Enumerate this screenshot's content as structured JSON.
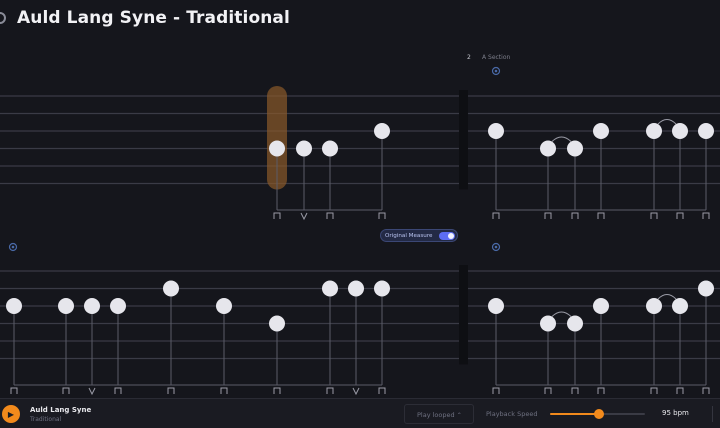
{
  "header": {
    "title": "Auld Lang Syne - Traditional"
  },
  "tab": {
    "string_count": 6,
    "systems": [
      {
        "measures": [
          {
            "notes": [
              {
                "beat": 1,
                "string": 4,
                "stem": "down",
                "highlight": true
              },
              {
                "beat": 2,
                "string": 4,
                "stem": "up"
              },
              {
                "beat": 3,
                "string": 4,
                "stem": "down"
              },
              {
                "beat": 4,
                "string": 3,
                "stem": "down"
              }
            ]
          },
          {
            "number": "2",
            "section": "A Section",
            "notes": [
              {
                "beat": 1,
                "string": 3,
                "stem": "down"
              },
              {
                "beat": 2,
                "string": 4,
                "stem": "down"
              },
              {
                "beat": 3,
                "string": 4,
                "stem": "down",
                "tie_from_prev": true
              },
              {
                "beat": 4,
                "string": 3,
                "stem": "down"
              },
              {
                "beat": 5,
                "string": 3,
                "stem": "down"
              },
              {
                "beat": 6,
                "string": 3,
                "stem": "down",
                "tie_from_prev": true
              },
              {
                "beat": 7,
                "string": 3,
                "stem": "down"
              }
            ]
          }
        ]
      },
      {
        "measures": [
          {
            "notes": [
              {
                "beat": 1,
                "string": 3,
                "stem": "down"
              },
              {
                "beat": 2,
                "string": 3,
                "stem": "down"
              },
              {
                "beat": 3,
                "string": 3,
                "stem": "up"
              },
              {
                "beat": 4,
                "string": 3,
                "stem": "down"
              },
              {
                "beat": 5,
                "string": 2,
                "stem": "down"
              },
              {
                "beat": 6,
                "string": 3,
                "stem": "down"
              },
              {
                "beat": 7,
                "string": 4,
                "stem": "down"
              },
              {
                "beat": 8,
                "string": 2,
                "stem": "down"
              },
              {
                "beat": 9,
                "string": 2,
                "stem": "up"
              },
              {
                "beat": 10,
                "string": 2,
                "stem": "down"
              }
            ]
          },
          {
            "notes": [
              {
                "beat": 1,
                "string": 3,
                "stem": "down"
              },
              {
                "beat": 2,
                "string": 4,
                "stem": "down"
              },
              {
                "beat": 3,
                "string": 4,
                "stem": "down",
                "tie_from_prev": true
              },
              {
                "beat": 4,
                "string": 3,
                "stem": "down"
              },
              {
                "beat": 5,
                "string": 3,
                "stem": "down"
              },
              {
                "beat": 6,
                "string": 3,
                "stem": "down",
                "tie_from_prev": true
              },
              {
                "beat": 7,
                "string": 2,
                "stem": "down"
              }
            ]
          }
        ]
      }
    ],
    "toggle": {
      "label": "Original Measure",
      "on": true
    }
  },
  "player": {
    "track_name": "Auld Lang Syne",
    "artist": "Traditional",
    "loop_label": "Play looped",
    "speed_label": "Playback Speed",
    "speed_percent": 0.52,
    "bpm": "95 bpm"
  },
  "colors": {
    "accent": "#f28a1c",
    "note": "#e6e6ec",
    "string_line": "#3a3b46",
    "highlight": "#8a5a2a",
    "toggle": "#5d6df2"
  },
  "icons": {
    "downstroke": "downstroke-icon",
    "upstroke": "upstroke-icon",
    "measure_marker": "measure-marker-icon"
  }
}
